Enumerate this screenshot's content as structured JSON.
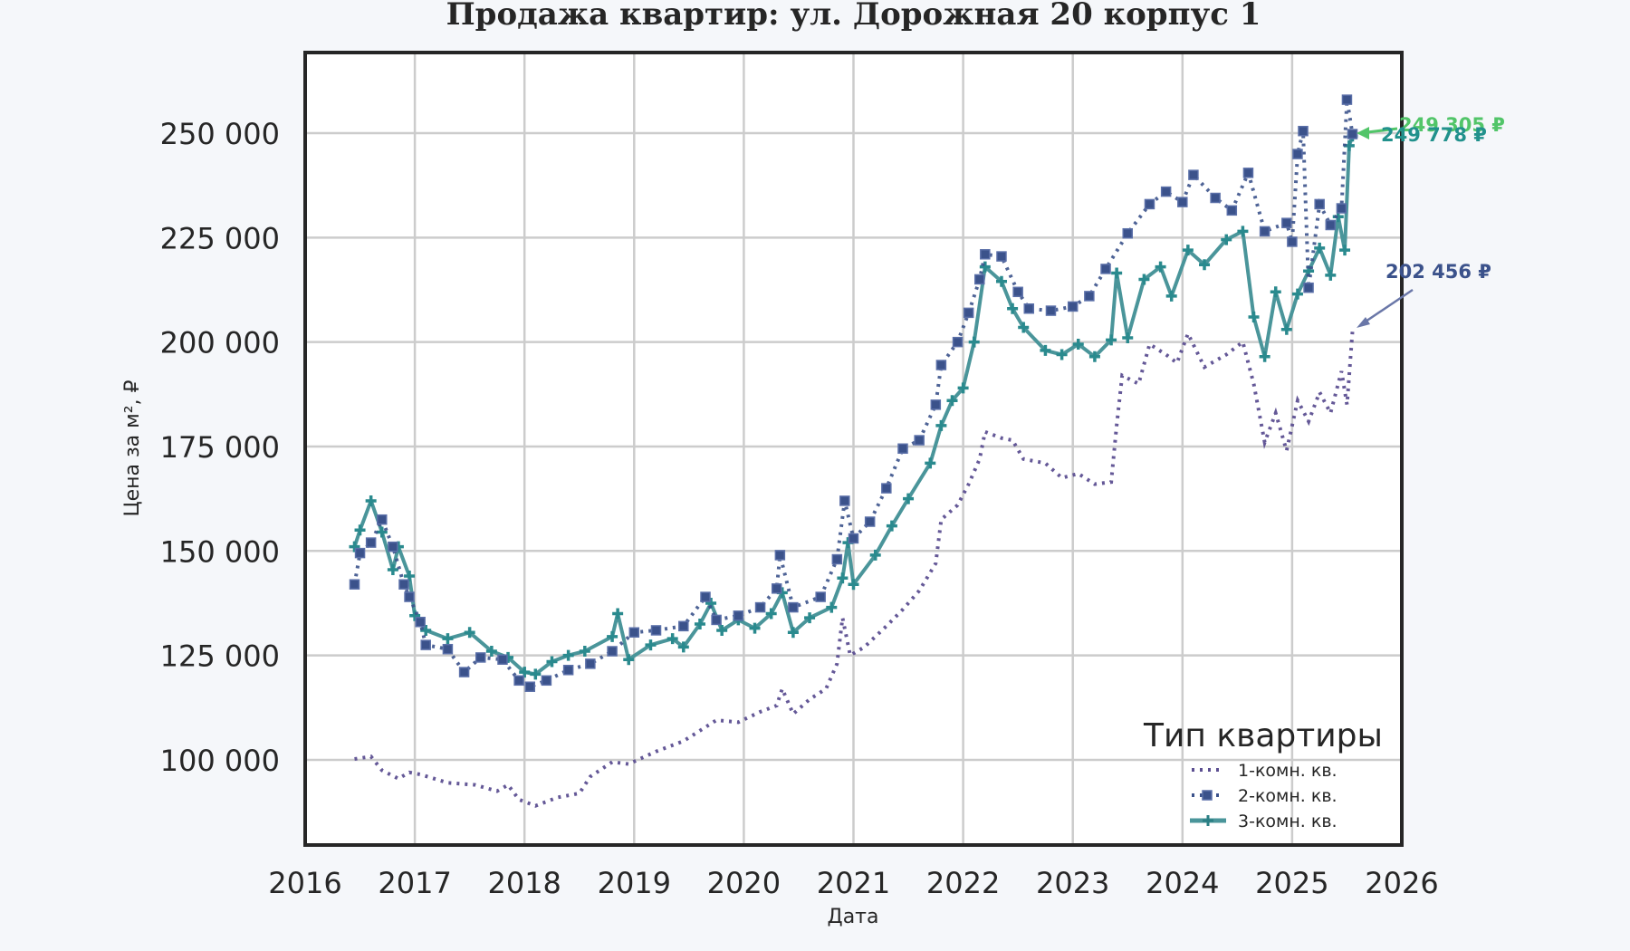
{
  "title": "Продажа квартир: ул. Дорожная 20 корпус 1",
  "colors": {
    "background": "#f5f7fa",
    "plot_background": "#ffffff",
    "grid": "#cccccc",
    "frame": "#262626",
    "series_1room": "#5c4f91",
    "series_2room": "#3b528b",
    "series_3room": "#2a8a8e",
    "annotation_3room": "#52c569",
    "annotation_2room": "#21918c",
    "annotation_1room": "#3b528b"
  },
  "chart_data": {
    "type": "line",
    "title": "Продажа квартир: ул. Дорожная 20 корпус 1",
    "xlabel": "Дата",
    "ylabel": "Цена за м², ₽",
    "xlim": [
      2016,
      2026
    ],
    "ylim": [
      82000,
      268000
    ],
    "x_ticks": [
      "2016",
      "2017",
      "2018",
      "2019",
      "2020",
      "2021",
      "2022",
      "2023",
      "2024",
      "2025",
      "2026"
    ],
    "y_ticks": [
      "100 000",
      "125 000",
      "150 000",
      "175 000",
      "200 000",
      "225 000",
      "250 000"
    ],
    "y_tick_values": [
      100000,
      125000,
      150000,
      175000,
      200000,
      225000,
      250000
    ],
    "grid": true,
    "legend": {
      "title": "Тип квартиры",
      "position": "lower right",
      "entries": [
        "1-комн. кв.",
        "2-комн. кв.",
        "3-комн. кв."
      ]
    },
    "series": [
      {
        "name": "1-комн. кв.",
        "style": "dotted",
        "points": [
          [
            2016.45,
            100200
          ],
          [
            2016.6,
            100800
          ],
          [
            2016.7,
            97500
          ],
          [
            2016.85,
            95500
          ],
          [
            2016.95,
            97000
          ],
          [
            2017.05,
            96500
          ],
          [
            2017.3,
            94500
          ],
          [
            2017.55,
            94000
          ],
          [
            2017.75,
            92500
          ],
          [
            2017.85,
            94000
          ],
          [
            2017.95,
            90500
          ],
          [
            2018.1,
            89000
          ],
          [
            2018.3,
            91000
          ],
          [
            2018.5,
            92000
          ],
          [
            2018.6,
            96000
          ],
          [
            2018.8,
            99500
          ],
          [
            2018.95,
            99000
          ],
          [
            2019.2,
            102000
          ],
          [
            2019.45,
            104500
          ],
          [
            2019.6,
            107000
          ],
          [
            2019.75,
            109500
          ],
          [
            2019.95,
            109000
          ],
          [
            2020.15,
            111500
          ],
          [
            2020.3,
            113000
          ],
          [
            2020.35,
            117000
          ],
          [
            2020.45,
            111000
          ],
          [
            2020.6,
            114500
          ],
          [
            2020.75,
            117000
          ],
          [
            2020.85,
            123000
          ],
          [
            2020.9,
            134000
          ],
          [
            2020.97,
            125000
          ],
          [
            2021.1,
            127000
          ],
          [
            2021.3,
            132000
          ],
          [
            2021.45,
            136000
          ],
          [
            2021.6,
            140500
          ],
          [
            2021.75,
            147000
          ],
          [
            2021.8,
            157500
          ],
          [
            2021.95,
            161000
          ],
          [
            2022.05,
            166000
          ],
          [
            2022.15,
            172000
          ],
          [
            2022.2,
            178500
          ],
          [
            2022.35,
            177000
          ],
          [
            2022.45,
            176500
          ],
          [
            2022.55,
            172000
          ],
          [
            2022.75,
            171000
          ],
          [
            2022.9,
            167500
          ],
          [
            2023.05,
            168500
          ],
          [
            2023.2,
            166000
          ],
          [
            2023.35,
            166500
          ],
          [
            2023.4,
            180000
          ],
          [
            2023.45,
            192000
          ],
          [
            2023.6,
            190000
          ],
          [
            2023.7,
            199500
          ],
          [
            2023.85,
            197000
          ],
          [
            2023.95,
            195000
          ],
          [
            2024.05,
            202000
          ],
          [
            2024.2,
            194000
          ],
          [
            2024.4,
            197000
          ],
          [
            2024.55,
            200000
          ],
          [
            2024.65,
            190000
          ],
          [
            2024.75,
            176000
          ],
          [
            2024.85,
            183000
          ],
          [
            2024.95,
            174000
          ],
          [
            2025.05,
            186000
          ],
          [
            2025.15,
            181000
          ],
          [
            2025.25,
            188000
          ],
          [
            2025.35,
            183000
          ],
          [
            2025.45,
            193000
          ],
          [
            2025.5,
            185000
          ],
          [
            2025.55,
            202456
          ]
        ],
        "last_value_label": "202 456 ₽"
      },
      {
        "name": "2-комн. кв.",
        "style": "dotted + square markers",
        "points": [
          [
            2016.45,
            142000
          ],
          [
            2016.5,
            149500
          ],
          [
            2016.6,
            152000
          ],
          [
            2016.7,
            157500
          ],
          [
            2016.8,
            151000
          ],
          [
            2016.9,
            142000
          ],
          [
            2016.95,
            139000
          ],
          [
            2017.05,
            133000
          ],
          [
            2017.1,
            127500
          ],
          [
            2017.3,
            126500
          ],
          [
            2017.45,
            121000
          ],
          [
            2017.6,
            124500
          ],
          [
            2017.8,
            124000
          ],
          [
            2017.95,
            119000
          ],
          [
            2018.05,
            117500
          ],
          [
            2018.2,
            119000
          ],
          [
            2018.4,
            121500
          ],
          [
            2018.6,
            123000
          ],
          [
            2018.8,
            126000
          ],
          [
            2019.0,
            130500
          ],
          [
            2019.2,
            131000
          ],
          [
            2019.45,
            132000
          ],
          [
            2019.65,
            139000
          ],
          [
            2019.75,
            133500
          ],
          [
            2019.95,
            134500
          ],
          [
            2020.15,
            136500
          ],
          [
            2020.3,
            141000
          ],
          [
            2020.33,
            149000
          ],
          [
            2020.45,
            136500
          ],
          [
            2020.7,
            139000
          ],
          [
            2020.85,
            148000
          ],
          [
            2020.92,
            162000
          ],
          [
            2021.0,
            153000
          ],
          [
            2021.15,
            157000
          ],
          [
            2021.3,
            165000
          ],
          [
            2021.45,
            174500
          ],
          [
            2021.6,
            176500
          ],
          [
            2021.75,
            185000
          ],
          [
            2021.8,
            194500
          ],
          [
            2021.95,
            200000
          ],
          [
            2022.05,
            207000
          ],
          [
            2022.15,
            215000
          ],
          [
            2022.2,
            221000
          ],
          [
            2022.35,
            220500
          ],
          [
            2022.5,
            212000
          ],
          [
            2022.6,
            208000
          ],
          [
            2022.8,
            207500
          ],
          [
            2023.0,
            208500
          ],
          [
            2023.15,
            211000
          ],
          [
            2023.3,
            217500
          ],
          [
            2023.5,
            226000
          ],
          [
            2023.7,
            233000
          ],
          [
            2023.85,
            236000
          ],
          [
            2024.0,
            233500
          ],
          [
            2024.1,
            240000
          ],
          [
            2024.3,
            234500
          ],
          [
            2024.45,
            231500
          ],
          [
            2024.6,
            240500
          ],
          [
            2024.75,
            226500
          ],
          [
            2024.95,
            228500
          ],
          [
            2025.0,
            224000
          ],
          [
            2025.05,
            245000
          ],
          [
            2025.1,
            250500
          ],
          [
            2025.15,
            213000
          ],
          [
            2025.25,
            233000
          ],
          [
            2025.35,
            228000
          ],
          [
            2025.45,
            232000
          ],
          [
            2025.5,
            258000
          ],
          [
            2025.55,
            249778
          ]
        ],
        "last_value_label": "249 778 ₽"
      },
      {
        "name": "3-комн. кв.",
        "style": "solid + plus markers",
        "points": [
          [
            2016.45,
            151000
          ],
          [
            2016.5,
            155000
          ],
          [
            2016.6,
            162000
          ],
          [
            2016.7,
            154500
          ],
          [
            2016.8,
            145500
          ],
          [
            2016.85,
            151000
          ],
          [
            2016.95,
            144000
          ],
          [
            2017.0,
            134500
          ],
          [
            2017.1,
            131000
          ],
          [
            2017.3,
            129000
          ],
          [
            2017.5,
            130500
          ],
          [
            2017.7,
            126000
          ],
          [
            2017.85,
            124500
          ],
          [
            2018.0,
            121000
          ],
          [
            2018.1,
            120500
          ],
          [
            2018.25,
            123500
          ],
          [
            2018.4,
            125000
          ],
          [
            2018.55,
            126000
          ],
          [
            2018.8,
            129500
          ],
          [
            2018.85,
            135000
          ],
          [
            2018.95,
            124000
          ],
          [
            2019.15,
            127500
          ],
          [
            2019.35,
            129000
          ],
          [
            2019.45,
            127000
          ],
          [
            2019.6,
            132500
          ],
          [
            2019.7,
            137500
          ],
          [
            2019.8,
            131000
          ],
          [
            2019.95,
            133500
          ],
          [
            2020.1,
            131500
          ],
          [
            2020.25,
            135000
          ],
          [
            2020.35,
            140000
          ],
          [
            2020.45,
            130500
          ],
          [
            2020.6,
            134000
          ],
          [
            2020.8,
            136500
          ],
          [
            2020.9,
            143500
          ],
          [
            2020.95,
            152000
          ],
          [
            2021.0,
            142000
          ],
          [
            2021.2,
            149000
          ],
          [
            2021.35,
            156000
          ],
          [
            2021.5,
            162500
          ],
          [
            2021.7,
            171000
          ],
          [
            2021.8,
            180000
          ],
          [
            2021.9,
            186000
          ],
          [
            2022.0,
            189000
          ],
          [
            2022.1,
            200000
          ],
          [
            2022.2,
            218000
          ],
          [
            2022.35,
            214500
          ],
          [
            2022.45,
            208000
          ],
          [
            2022.55,
            203500
          ],
          [
            2022.75,
            198000
          ],
          [
            2022.9,
            197000
          ],
          [
            2023.05,
            199500
          ],
          [
            2023.2,
            196500
          ],
          [
            2023.35,
            200500
          ],
          [
            2023.4,
            216500
          ],
          [
            2023.5,
            201000
          ],
          [
            2023.65,
            215000
          ],
          [
            2023.8,
            218000
          ],
          [
            2023.9,
            211000
          ],
          [
            2024.05,
            222000
          ],
          [
            2024.2,
            218500
          ],
          [
            2024.4,
            224500
          ],
          [
            2024.55,
            226500
          ],
          [
            2024.65,
            206000
          ],
          [
            2024.75,
            196500
          ],
          [
            2024.85,
            212000
          ],
          [
            2024.95,
            203000
          ],
          [
            2025.05,
            211500
          ],
          [
            2025.15,
            217000
          ],
          [
            2025.25,
            222500
          ],
          [
            2025.35,
            216000
          ],
          [
            2025.42,
            230000
          ],
          [
            2025.48,
            222000
          ],
          [
            2025.52,
            247000
          ],
          [
            2025.55,
            249305
          ]
        ],
        "last_value_label": "249 305 ₽"
      }
    ],
    "annotations": [
      {
        "text": "249 305 ₽",
        "series": "3-комн. кв."
      },
      {
        "text": "249 778 ₽",
        "series": "2-комн. кв."
      },
      {
        "text": "202 456 ₽",
        "series": "1-комн. кв."
      }
    ]
  }
}
